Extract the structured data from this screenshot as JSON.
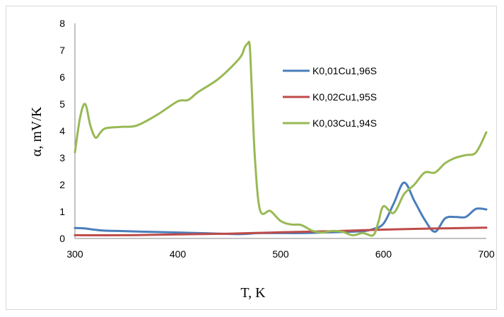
{
  "chart_data": {
    "type": "line",
    "xlabel": "T, K",
    "ylabel": "α, mV/K",
    "xlim": [
      300,
      700
    ],
    "ylim": [
      0,
      8
    ],
    "xticks": [
      "300",
      "400",
      "500",
      "600",
      "700"
    ],
    "yticks": [
      "0",
      "1",
      "2",
      "3",
      "4",
      "5",
      "6",
      "7",
      "8"
    ],
    "grid": false,
    "legend_position": "right",
    "series": [
      {
        "name": "K0,01Cu1,96S",
        "color": "#4a7ebb",
        "x": [
          300,
          310,
          320,
          330,
          350,
          380,
          400,
          420,
          440,
          460,
          470,
          480,
          500,
          520,
          540,
          560,
          580,
          590,
          600,
          610,
          620,
          630,
          640,
          650,
          660,
          670,
          680,
          690,
          700
        ],
        "y": [
          0.39,
          0.37,
          0.32,
          0.29,
          0.27,
          0.24,
          0.22,
          0.2,
          0.18,
          0.16,
          0.18,
          0.2,
          0.2,
          0.2,
          0.22,
          0.24,
          0.27,
          0.35,
          0.55,
          1.3,
          2.08,
          1.4,
          0.7,
          0.25,
          0.75,
          0.8,
          0.8,
          1.1,
          1.08
        ]
      },
      {
        "name": "K0,02Cu1,95S",
        "color": "#be4b48",
        "x": [
          300,
          350,
          400,
          450,
          500,
          550,
          600,
          650,
          700
        ],
        "y": [
          0.12,
          0.12,
          0.15,
          0.18,
          0.23,
          0.27,
          0.33,
          0.37,
          0.4
        ]
      },
      {
        "name": "K0,03Cu1,94S",
        "color": "#98b954",
        "x": [
          300,
          305,
          310,
          315,
          320,
          325,
          330,
          345,
          360,
          380,
          400,
          410,
          420,
          440,
          460,
          465,
          468,
          470,
          472,
          475,
          480,
          490,
          500,
          510,
          520,
          530,
          540,
          550,
          560,
          570,
          580,
          590,
          595,
          600,
          610,
          620,
          630,
          640,
          650,
          660,
          670,
          680,
          690,
          700
        ],
        "y": [
          3.2,
          4.5,
          5.0,
          4.2,
          3.75,
          3.95,
          4.1,
          4.15,
          4.2,
          4.6,
          5.1,
          5.15,
          5.45,
          5.95,
          6.7,
          7.1,
          7.25,
          7.15,
          5.5,
          3.0,
          1.05,
          1.02,
          0.65,
          0.52,
          0.5,
          0.3,
          0.22,
          0.28,
          0.25,
          0.12,
          0.2,
          0.12,
          0.6,
          1.2,
          0.95,
          1.65,
          2.0,
          2.45,
          2.45,
          2.8,
          3.0,
          3.1,
          3.2,
          3.95
        ]
      }
    ]
  }
}
